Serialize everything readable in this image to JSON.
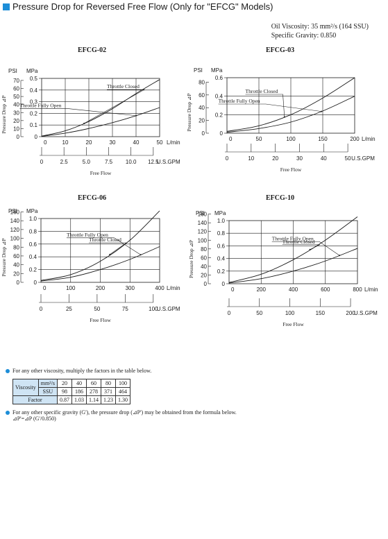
{
  "header": {
    "title": "Pressure Drop for Reversed Free Flow  (Only for \"EFCG\" Models)"
  },
  "oil_info": {
    "viscosity": "Oil Viscosity: 35 mm²/s (164 SSU)",
    "gravity": "Specific Gravity: 0.850"
  },
  "colors": {
    "accent": "#1d8ed8",
    "table_header": "#cfe4f4"
  },
  "chart_data": [
    {
      "type": "line",
      "title": "EFCG-02",
      "y_label": "Pressure Drop ⊿P",
      "x_label": "Free Flow",
      "psi_label": "PSI",
      "mpa_label": "MPa",
      "lpm_unit": "L/min",
      "gpm_unit": "U.S.GPM",
      "xlim": [
        0,
        50
      ],
      "ylim": [
        0,
        0.5
      ],
      "lpm_ticks": [
        "0",
        "10",
        "20",
        "30",
        "40",
        "50"
      ],
      "gpm_ticks": [
        "0",
        "2.5",
        "5.0",
        "7.5",
        "10.0",
        "12.5"
      ],
      "mpa_ticks": [
        "0",
        "0.1",
        "0.2",
        "0.3",
        "0.4",
        "0.5"
      ],
      "psi_ticks": [
        "0",
        "10",
        "20",
        "30",
        "40",
        "50",
        "60",
        "70"
      ],
      "series": [
        {
          "name": "Throttle Closed",
          "x": [
            0,
            10,
            20,
            30,
            40,
            50
          ],
          "y": [
            0.005,
            0.05,
            0.13,
            0.24,
            0.37,
            0.49
          ]
        },
        {
          "name": "Throttle Fully Open",
          "x": [
            0,
            10,
            20,
            30,
            40,
            50
          ],
          "y": [
            0.003,
            0.03,
            0.07,
            0.12,
            0.18,
            0.25
          ]
        }
      ]
    },
    {
      "type": "line",
      "title": "EFCG-03",
      "y_label": "Pressure Drop ⊿P",
      "x_label": "Free Flow",
      "psi_label": "PSI",
      "mpa_label": "MPa",
      "lpm_unit": "L/min",
      "gpm_unit": "U.S.GPM",
      "xlim": [
        0,
        200
      ],
      "ylim": [
        0,
        0.6
      ],
      "lpm_ticks": [
        "0",
        "50",
        "100",
        "150",
        "200"
      ],
      "gpm_ticks": [
        "0",
        "10",
        "20",
        "30",
        "40",
        "50"
      ],
      "mpa_ticks": [
        "0",
        "0.2",
        "0.4",
        "0.6"
      ],
      "psi_ticks": [
        "0",
        "20",
        "40",
        "60",
        "80"
      ],
      "series": [
        {
          "name": "Throttle Closed",
          "x": [
            0,
            50,
            100,
            150,
            200
          ],
          "y": [
            0.02,
            0.08,
            0.2,
            0.38,
            0.6
          ]
        },
        {
          "name": "Throttle Fully Open",
          "x": [
            0,
            50,
            100,
            150,
            200
          ],
          "y": [
            0.01,
            0.05,
            0.12,
            0.24,
            0.4
          ]
        }
      ]
    },
    {
      "type": "line",
      "title": "EFCG-06",
      "y_label": "Pressure Drop ⊿P",
      "x_label": "Free Flow",
      "psi_label": "PSI",
      "mpa_label": "MPa",
      "lpm_unit": "L/min",
      "gpm_unit": "U.S.GPM",
      "xlim": [
        0,
        400
      ],
      "ylim": [
        0,
        1.0
      ],
      "lpm_ticks": [
        "0",
        "100",
        "200",
        "300",
        "400"
      ],
      "gpm_ticks": [
        "0",
        "25",
        "50",
        "75",
        "100"
      ],
      "mpa_ticks": [
        "0",
        "0.2",
        "0.4",
        "0.6",
        "0.8",
        "1.0"
      ],
      "psi_ticks": [
        "0",
        "20",
        "40",
        "60",
        "80",
        "100",
        "120",
        "140",
        "160"
      ],
      "series": [
        {
          "name": "Throttle Closed",
          "x": [
            0,
            100,
            200,
            300,
            400
          ],
          "y": [
            0.03,
            0.12,
            0.33,
            0.66,
            1.12
          ]
        },
        {
          "name": "Throttle Fully Open",
          "x": [
            0,
            100,
            200,
            300,
            400
          ],
          "y": [
            0.02,
            0.08,
            0.2,
            0.36,
            0.56
          ]
        }
      ]
    },
    {
      "type": "line",
      "title": "EFCG-10",
      "y_label": "Pressure Drop ⊿P",
      "x_label": "Free Flow",
      "psi_label": "PSI",
      "mpa_label": "MPa",
      "lpm_unit": "L/min",
      "gpm_unit": "U.S.GPM",
      "xlim": [
        0,
        800
      ],
      "ylim": [
        0,
        1.0
      ],
      "lpm_ticks": [
        "0",
        "200",
        "400",
        "600",
        "800"
      ],
      "gpm_ticks": [
        "0",
        "50",
        "100",
        "150",
        "200"
      ],
      "mpa_ticks": [
        "0",
        "0.2",
        "0.4",
        "0.6",
        "0.8",
        "1.0"
      ],
      "psi_ticks": [
        "0",
        "20",
        "40",
        "60",
        "80",
        "100",
        "120",
        "140",
        "160"
      ],
      "series": [
        {
          "name": "Throttle Closed",
          "x": [
            0,
            200,
            400,
            600,
            800
          ],
          "y": [
            0.02,
            0.15,
            0.38,
            0.69,
            1.06
          ]
        },
        {
          "name": "Throttle Fully Open",
          "x": [
            0,
            200,
            400,
            600,
            800
          ],
          "y": [
            0.01,
            0.08,
            0.2,
            0.36,
            0.56
          ]
        }
      ]
    }
  ],
  "notes": {
    "viscosity_note": "For any other viscosity, multiply the factors in the table below.",
    "table": {
      "row_label": "Viscosity",
      "unit_mm": "mm²/s",
      "unit_ssu": "SSU",
      "factor_label": "Factor",
      "mm_values": [
        "20",
        "40",
        "60",
        "80",
        "100"
      ],
      "ssu_values": [
        "98",
        "186",
        "278",
        "371",
        "464"
      ],
      "factor_values": [
        "0.87",
        "1.03",
        "1.14",
        "1.23",
        "1.30"
      ]
    },
    "gravity_note": "For any other specific gravity (G'), the pressure drop (⊿P') may be obtained from the formula below.",
    "formula": "⊿P'=⊿P (G'/0.850)"
  }
}
